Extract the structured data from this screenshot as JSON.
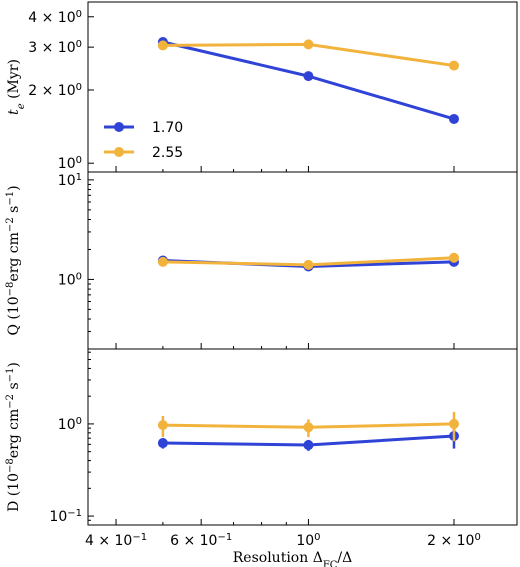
{
  "chart_data": {
    "type": "line",
    "x": [
      0.5,
      1.0,
      2.0
    ],
    "xlabel": "Resolution Δ_FC/Δ",
    "xlim": [
      0.35,
      2.7
    ],
    "xscale": "log",
    "xticks": [
      {
        "value": 0.4,
        "label": "4 × 10^-1"
      },
      {
        "value": 0.6,
        "label": "6 × 10^-1"
      },
      {
        "value": 1.0,
        "label": "10^0"
      },
      {
        "value": 2.0,
        "label": "2 × 10^0"
      }
    ],
    "colors": {
      "series_170": "#2f43d6",
      "series_255": "#f2b33d"
    },
    "legend": {
      "placement": "lower-left",
      "panel": "top",
      "entries": [
        "1.70",
        "2.55"
      ]
    },
    "panels": [
      {
        "id": "te",
        "ylabel": "t_e (Myr)",
        "yscale": "log",
        "ylim": [
          0.92,
          4.6
        ],
        "yticks": [
          {
            "value": 1,
            "label": "10^0"
          },
          {
            "value": 2,
            "label": "2 × 10^0"
          },
          {
            "value": 3,
            "label": "3 × 10^0"
          },
          {
            "value": 4,
            "label": "4 × 10^0"
          }
        ],
        "series": [
          {
            "name": "1.70",
            "values": [
              3.15,
              2.28,
              1.52
            ]
          },
          {
            "name": "2.55",
            "values": [
              3.05,
              3.08,
              2.52
            ]
          }
        ]
      },
      {
        "id": "Q",
        "ylabel": "Q (10^-8 erg cm^-2 s^-1)",
        "yscale": "log",
        "ylim": [
          0.2,
          12
        ],
        "yticks": [
          {
            "value": 1,
            "label": "10^0"
          },
          {
            "value": 10,
            "label": "10^1"
          }
        ],
        "series": [
          {
            "name": "1.70",
            "values": [
              1.55,
              1.35,
              1.5
            ]
          },
          {
            "name": "2.55",
            "values": [
              1.5,
              1.4,
              1.65
            ]
          }
        ]
      },
      {
        "id": "D",
        "ylabel": "D (10^-8 erg cm^-2 s^-1)",
        "yscale": "log",
        "ylim": [
          0.08,
          6.5
        ],
        "yticks": [
          {
            "value": 0.1,
            "label": "10^-1"
          },
          {
            "value": 1,
            "label": "10^0"
          }
        ],
        "series": [
          {
            "name": "1.70",
            "values": [
              0.62,
              0.59,
              0.74
            ],
            "errors": [
              0.08,
              0.08,
              0.2
            ]
          },
          {
            "name": "2.55",
            "values": [
              0.97,
              0.92,
              1.0
            ],
            "errors": [
              0.25,
              0.2,
              0.35
            ]
          }
        ]
      }
    ]
  }
}
